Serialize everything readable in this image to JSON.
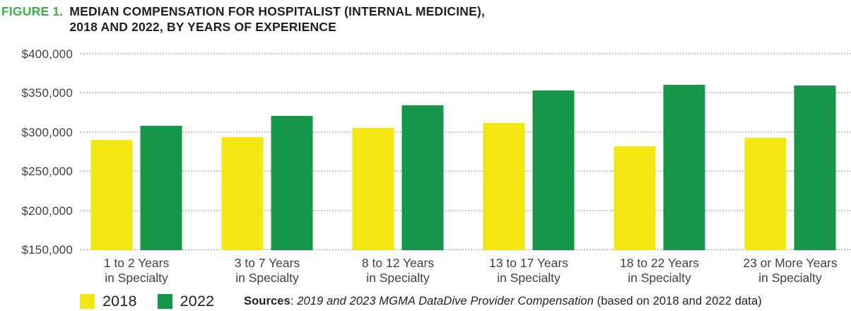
{
  "title": {
    "figure_label": "FIGURE 1.",
    "line1": "MEDIAN COMPENSATION FOR HOSPITALIST (INTERNAL MEDICINE),",
    "line2": "2018 AND 2022, BY YEARS OF EXPERIENCE"
  },
  "chart_data": {
    "type": "bar",
    "title": "Median Compensation for Hospitalist (Internal Medicine), 2018 and 2022, by Years of Experience",
    "categories": [
      {
        "line1": "1 to 2 Years",
        "line2": "in Specialty"
      },
      {
        "line1": "3 to 7 Years",
        "line2": "in Specialty"
      },
      {
        "line1": "8 to 12 Years",
        "line2": "in Specialty"
      },
      {
        "line1": "13 to 17 Years",
        "line2": "in Specialty"
      },
      {
        "line1": "18 to 22 Years",
        "line2": "in Specialty"
      },
      {
        "line1": "23 or More Years",
        "line2": "in Specialty"
      }
    ],
    "series": [
      {
        "name": "2018",
        "color": "#F2E713",
        "values": [
          291000,
          294000,
          306000,
          312000,
          282000,
          293000
        ]
      },
      {
        "name": "2022",
        "color": "#169648",
        "values": [
          309000,
          321000,
          335000,
          354000,
          361000,
          360000
        ]
      }
    ],
    "y_axis": {
      "min": 150000,
      "max": 400000,
      "tick_values": [
        400000,
        350000,
        300000,
        250000,
        200000,
        150000
      ],
      "tick_labels": [
        "$400,000",
        "$350,000",
        "$300,000",
        "$250,000",
        "$200,000",
        "$150,000"
      ]
    },
    "xlabel": "",
    "ylabel": "",
    "grid": "horizontal dotted",
    "legend_position": "bottom-left"
  },
  "legend": {
    "items": [
      {
        "label": "2018",
        "color": "#F2E713"
      },
      {
        "label": "2022",
        "color": "#169648"
      }
    ]
  },
  "source": {
    "prefix": "Sources",
    "separator": ": ",
    "italic_text": "2019 and 2023 MGMA DataDive Provider Compensation",
    "suffix": " (based on 2018 and 2022 data)"
  },
  "colors": {
    "figure_label_green": "#3BAE49",
    "bar_2018_yellow": "#F2E713",
    "bar_2022_green": "#169648",
    "gridline_gray": "#C4C6C8",
    "text_dark": "#231F20",
    "axis_text": "#414042"
  }
}
